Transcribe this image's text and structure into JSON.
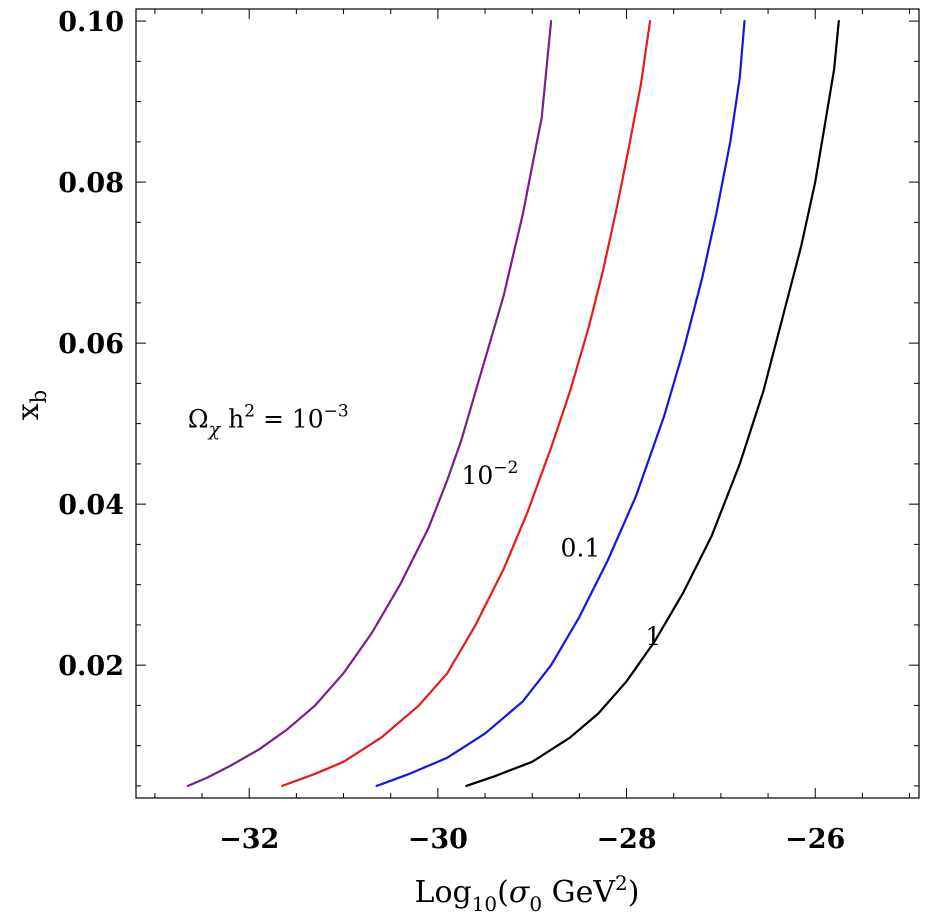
{
  "chart_data": {
    "type": "line",
    "title": "",
    "xlabel": {
      "prefix": "Log",
      "sub": "10",
      "open": "(",
      "sigma": "σ",
      "sigma_sub": "0",
      "unit": " GeV",
      "sup": "2",
      "close": ")"
    },
    "ylabel": {
      "base": "x",
      "sub": "b"
    },
    "xlim": [
      -33.2,
      -24.9
    ],
    "ylim": [
      0.0035,
      0.1015
    ],
    "x_ticks": [
      -32,
      -30,
      -28,
      -26
    ],
    "x_tick_labels": [
      "−32",
      "−30",
      "−28",
      "−26"
    ],
    "y_ticks": [
      0.02,
      0.04,
      0.06,
      0.08,
      0.1
    ],
    "y_tick_labels": [
      "0.02",
      "0.04",
      "0.06",
      "0.08",
      "0.10"
    ],
    "grid": false,
    "series": [
      {
        "color": "#7a1e8c",
        "x": [
          -32.65,
          -32.45,
          -32.2,
          -31.9,
          -31.6,
          -31.3,
          -31.0,
          -30.7,
          -30.4,
          -30.1,
          -29.9,
          -29.75,
          -29.6,
          -29.45,
          -29.3,
          -29.2,
          -29.1,
          -29.0,
          -28.9,
          -28.85,
          -28.8
        ],
        "y": [
          0.005,
          0.006,
          0.0075,
          0.0095,
          0.012,
          0.015,
          0.019,
          0.024,
          0.03,
          0.037,
          0.043,
          0.048,
          0.054,
          0.06,
          0.066,
          0.071,
          0.076,
          0.082,
          0.088,
          0.094,
          0.1
        ]
      },
      {
        "color": "#e8181c",
        "x": [
          -31.65,
          -31.3,
          -31.0,
          -30.6,
          -30.2,
          -29.9,
          -29.6,
          -29.3,
          -29.05,
          -28.8,
          -28.6,
          -28.4,
          -28.25,
          -28.1,
          -27.98,
          -27.85,
          -27.75
        ],
        "y": [
          0.005,
          0.0065,
          0.008,
          0.011,
          0.015,
          0.019,
          0.025,
          0.032,
          0.039,
          0.047,
          0.054,
          0.062,
          0.069,
          0.077,
          0.084,
          0.092,
          0.1
        ]
      },
      {
        "color": "#1414e6",
        "x": [
          -30.65,
          -30.3,
          -29.9,
          -29.5,
          -29.1,
          -28.8,
          -28.5,
          -28.2,
          -27.9,
          -27.6,
          -27.4,
          -27.2,
          -27.05,
          -26.9,
          -26.8,
          -26.75
        ],
        "y": [
          0.005,
          0.0065,
          0.0085,
          0.0115,
          0.0155,
          0.02,
          0.026,
          0.033,
          0.041,
          0.051,
          0.059,
          0.068,
          0.076,
          0.085,
          0.093,
          0.1
        ]
      },
      {
        "color": "#000000",
        "x": [
          -29.7,
          -29.4,
          -29.0,
          -28.6,
          -28.3,
          -28.0,
          -27.7,
          -27.4,
          -27.1,
          -26.8,
          -26.55,
          -26.35,
          -26.15,
          -26.0,
          -25.9,
          -25.8,
          -25.75
        ],
        "y": [
          0.005,
          0.0062,
          0.008,
          0.011,
          0.014,
          0.018,
          0.023,
          0.029,
          0.036,
          0.045,
          0.054,
          0.063,
          0.072,
          0.08,
          0.087,
          0.094,
          0.1
        ]
      }
    ],
    "annotations": [
      {
        "text": "Ω",
        "sub": "χ",
        "mid": " h",
        "sup": "2",
        "eq": " = 10",
        "exp": "−3",
        "x": -32.65,
        "y": 0.0495
      },
      {
        "text": "10",
        "exp": "−2",
        "x": -29.75,
        "y": 0.0425
      },
      {
        "text": "0.1",
        "x": -28.7,
        "y": 0.0335
      },
      {
        "text": "1",
        "x": -27.8,
        "y": 0.0225
      }
    ]
  }
}
